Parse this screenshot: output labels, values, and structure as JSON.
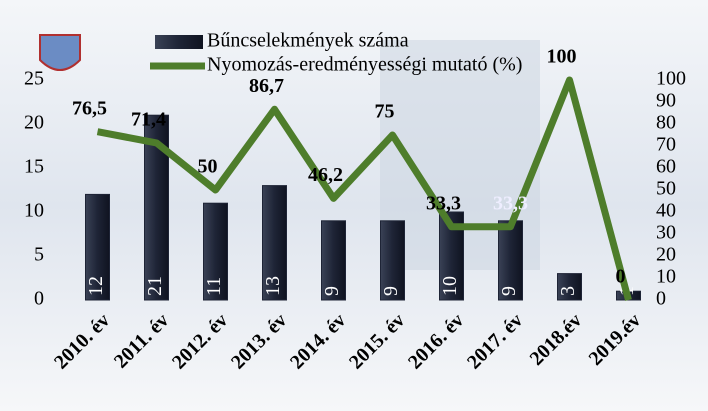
{
  "chart_data": {
    "type": "bar",
    "categories": [
      "2010. év",
      "2011. év",
      "2012. év",
      "2013. év",
      "2014. év",
      "2015. év",
      "2016. év",
      "2017. év",
      "2018.év",
      "2019.év"
    ],
    "series": [
      {
        "name": "Bűncselekmények száma",
        "type": "bar",
        "axis": "y",
        "color": "#1e2436",
        "values": [
          12,
          21,
          11,
          13,
          9,
          9,
          10,
          9,
          3,
          1
        ]
      },
      {
        "name": "Nyomozás-eredményességi mutató (%)",
        "type": "line",
        "axis": "y2",
        "color": "#4e7d2b",
        "values": [
          76.5,
          71.4,
          50,
          86.7,
          46.2,
          75,
          33.3,
          33.3,
          100,
          0
        ],
        "value_labels": [
          "76,5",
          "71,4",
          "50",
          "86,7",
          "46,2",
          "75",
          "33,3",
          "33,3",
          "100",
          "0"
        ]
      }
    ],
    "ylim": [
      0,
      25
    ],
    "yticks": [
      0,
      5,
      10,
      15,
      20,
      25
    ],
    "y2lim": [
      0,
      100
    ],
    "y2ticks": [
      0,
      10,
      20,
      30,
      40,
      50,
      60,
      70,
      80,
      90,
      100
    ]
  }
}
